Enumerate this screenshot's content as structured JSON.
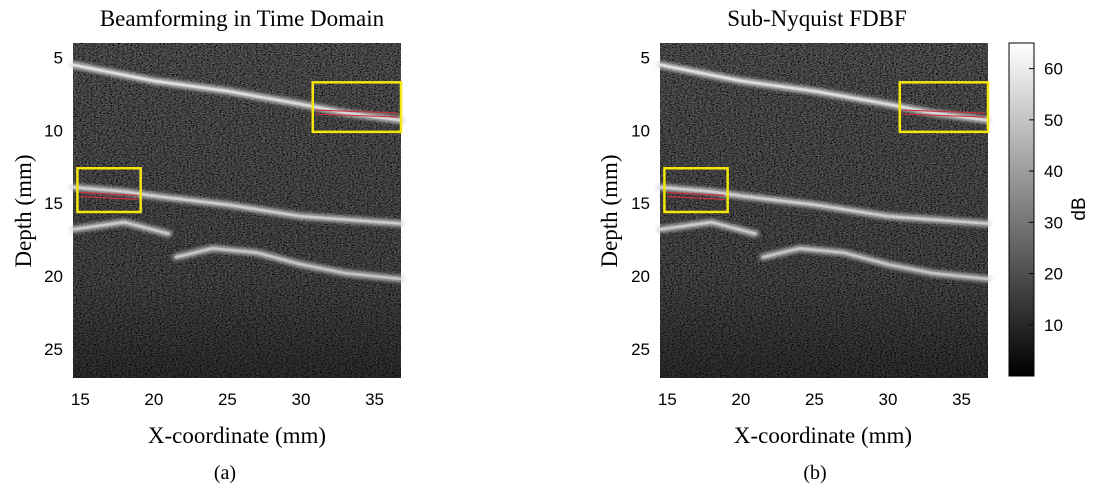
{
  "figure": {
    "panels": [
      {
        "id": "a",
        "title": "Beamforming in Time Domain",
        "xlabel": "X-coordinate (mm)",
        "ylabel": "Depth (mm)",
        "caption": "(a)"
      },
      {
        "id": "b",
        "title": "Sub-Nyquist FDBF",
        "xlabel": "X-coordinate (mm)",
        "ylabel": "Depth (mm)",
        "caption": "(b)"
      }
    ],
    "colorbar": {
      "label": "dB",
      "ticks": [
        "10",
        "20",
        "30",
        "40",
        "50",
        "60"
      ]
    }
  },
  "chart_data": [
    {
      "type": "heatmap",
      "title": "Beamforming in Time Domain",
      "xlabel": "X-coordinate (mm)",
      "ylabel": "Depth (mm)",
      "xlim": [
        14.5,
        36.8
      ],
      "ylim": [
        27,
        4
      ],
      "xticks": [
        15,
        20,
        25,
        30,
        35
      ],
      "yticks": [
        5,
        10,
        15,
        20,
        25
      ],
      "colormap": "gray",
      "clim": [
        0,
        65
      ],
      "highlight_boxes": [
        {
          "x": [
            30.8,
            36.8
          ],
          "y": [
            6.7,
            10.1
          ]
        },
        {
          "x": [
            14.8,
            19.1
          ],
          "y": [
            12.6,
            15.6
          ]
        }
      ],
      "bright_layers": [
        {
          "x": [
            14.5,
            20,
            25,
            30,
            33,
            36.8
          ],
          "depth": [
            5.5,
            6.6,
            7.3,
            8.2,
            8.8,
            9.3
          ]
        },
        {
          "x": [
            14.5,
            18,
            20,
            25,
            30,
            36.8
          ],
          "depth": [
            13.9,
            14.2,
            14.5,
            15.1,
            15.9,
            16.4
          ]
        },
        {
          "x": [
            14.5,
            18,
            21
          ],
          "depth": [
            16.8,
            16.3,
            17.1
          ]
        },
        {
          "x": [
            21.5,
            24,
            27,
            30,
            33,
            36.8
          ],
          "depth": [
            18.7,
            18.1,
            18.4,
            19.2,
            19.8,
            20.2
          ]
        }
      ]
    },
    {
      "type": "heatmap",
      "title": "Sub-Nyquist FDBF",
      "xlabel": "X-coordinate (mm)",
      "ylabel": "Depth (mm)",
      "xlim": [
        14.5,
        36.8
      ],
      "ylim": [
        27,
        4
      ],
      "xticks": [
        15,
        20,
        25,
        30,
        35
      ],
      "yticks": [
        5,
        10,
        15,
        20,
        25
      ],
      "colormap": "gray",
      "clim": [
        0,
        65
      ],
      "colorbar": {
        "label": "dB",
        "ticks": [
          10,
          20,
          30,
          40,
          50,
          60
        ]
      },
      "highlight_boxes": [
        {
          "x": [
            30.8,
            36.8
          ],
          "y": [
            6.7,
            10.1
          ]
        },
        {
          "x": [
            14.8,
            19.1
          ],
          "y": [
            12.6,
            15.6
          ]
        }
      ],
      "bright_layers": [
        {
          "x": [
            14.5,
            20,
            25,
            30,
            33,
            36.8
          ],
          "depth": [
            5.5,
            6.6,
            7.3,
            8.2,
            8.8,
            9.3
          ]
        },
        {
          "x": [
            14.5,
            18,
            20,
            25,
            30,
            36.8
          ],
          "depth": [
            13.9,
            14.2,
            14.5,
            15.1,
            15.9,
            16.4
          ]
        },
        {
          "x": [
            14.5,
            18,
            21
          ],
          "depth": [
            16.8,
            16.3,
            17.1
          ]
        },
        {
          "x": [
            21.5,
            24,
            27,
            30,
            33,
            36.8
          ],
          "depth": [
            18.7,
            18.1,
            18.4,
            19.2,
            19.8,
            20.2
          ]
        }
      ]
    }
  ]
}
